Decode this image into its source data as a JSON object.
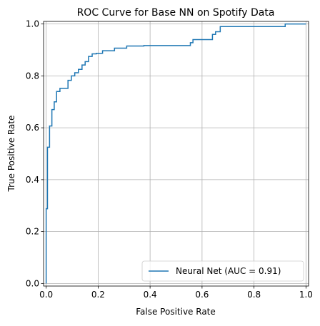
{
  "chart_data": {
    "type": "line",
    "title": "ROC Curve for Base NN on Spotify Data",
    "xlabel": "False Positive Rate",
    "ylabel": "True Positive Rate",
    "xlim": [
      -0.01,
      1.01
    ],
    "ylim": [
      -0.01,
      1.01
    ],
    "xticks": [
      {
        "value": 0.0,
        "label": "0.0"
      },
      {
        "value": 0.2,
        "label": "0.2"
      },
      {
        "value": 0.4,
        "label": "0.4"
      },
      {
        "value": 0.6,
        "label": "0.6"
      },
      {
        "value": 0.8,
        "label": "0.8"
      },
      {
        "value": 1.0,
        "label": "1.0"
      }
    ],
    "yticks": [
      {
        "value": 0.0,
        "label": "0.0"
      },
      {
        "value": 0.2,
        "label": "0.2"
      },
      {
        "value": 0.4,
        "label": "0.4"
      },
      {
        "value": 0.6,
        "label": "0.6"
      },
      {
        "value": 0.8,
        "label": "0.8"
      },
      {
        "value": 1.0,
        "label": "1.0"
      }
    ],
    "grid": true,
    "legend_position": "lower right",
    "series": [
      {
        "name": "Neural Net (AUC = 0.91)",
        "color": "#1f77b4",
        "x": [
          0.0,
          0.0,
          0.005,
          0.005,
          0.013,
          0.013,
          0.022,
          0.022,
          0.031,
          0.031,
          0.04,
          0.04,
          0.053,
          0.053,
          0.084,
          0.084,
          0.097,
          0.097,
          0.11,
          0.11,
          0.124,
          0.124,
          0.138,
          0.138,
          0.15,
          0.15,
          0.163,
          0.163,
          0.177,
          0.177,
          0.193,
          0.193,
          0.217,
          0.217,
          0.263,
          0.263,
          0.31,
          0.31,
          0.376,
          0.376,
          0.555,
          0.555,
          0.565,
          0.565,
          0.64,
          0.64,
          0.652,
          0.652,
          0.67,
          0.67,
          0.92,
          0.92,
          1.0
        ],
        "y": [
          0.0,
          0.288,
          0.288,
          0.525,
          0.525,
          0.607,
          0.607,
          0.67,
          0.67,
          0.7,
          0.7,
          0.74,
          0.74,
          0.752,
          0.752,
          0.783,
          0.783,
          0.8,
          0.8,
          0.812,
          0.812,
          0.825,
          0.825,
          0.842,
          0.842,
          0.855,
          0.855,
          0.875,
          0.875,
          0.885,
          0.885,
          0.887,
          0.887,
          0.897,
          0.897,
          0.907,
          0.907,
          0.915,
          0.915,
          0.917,
          0.917,
          0.928,
          0.928,
          0.94,
          0.94,
          0.96,
          0.96,
          0.97,
          0.97,
          0.99,
          0.99,
          1.0,
          1.0
        ]
      }
    ]
  }
}
